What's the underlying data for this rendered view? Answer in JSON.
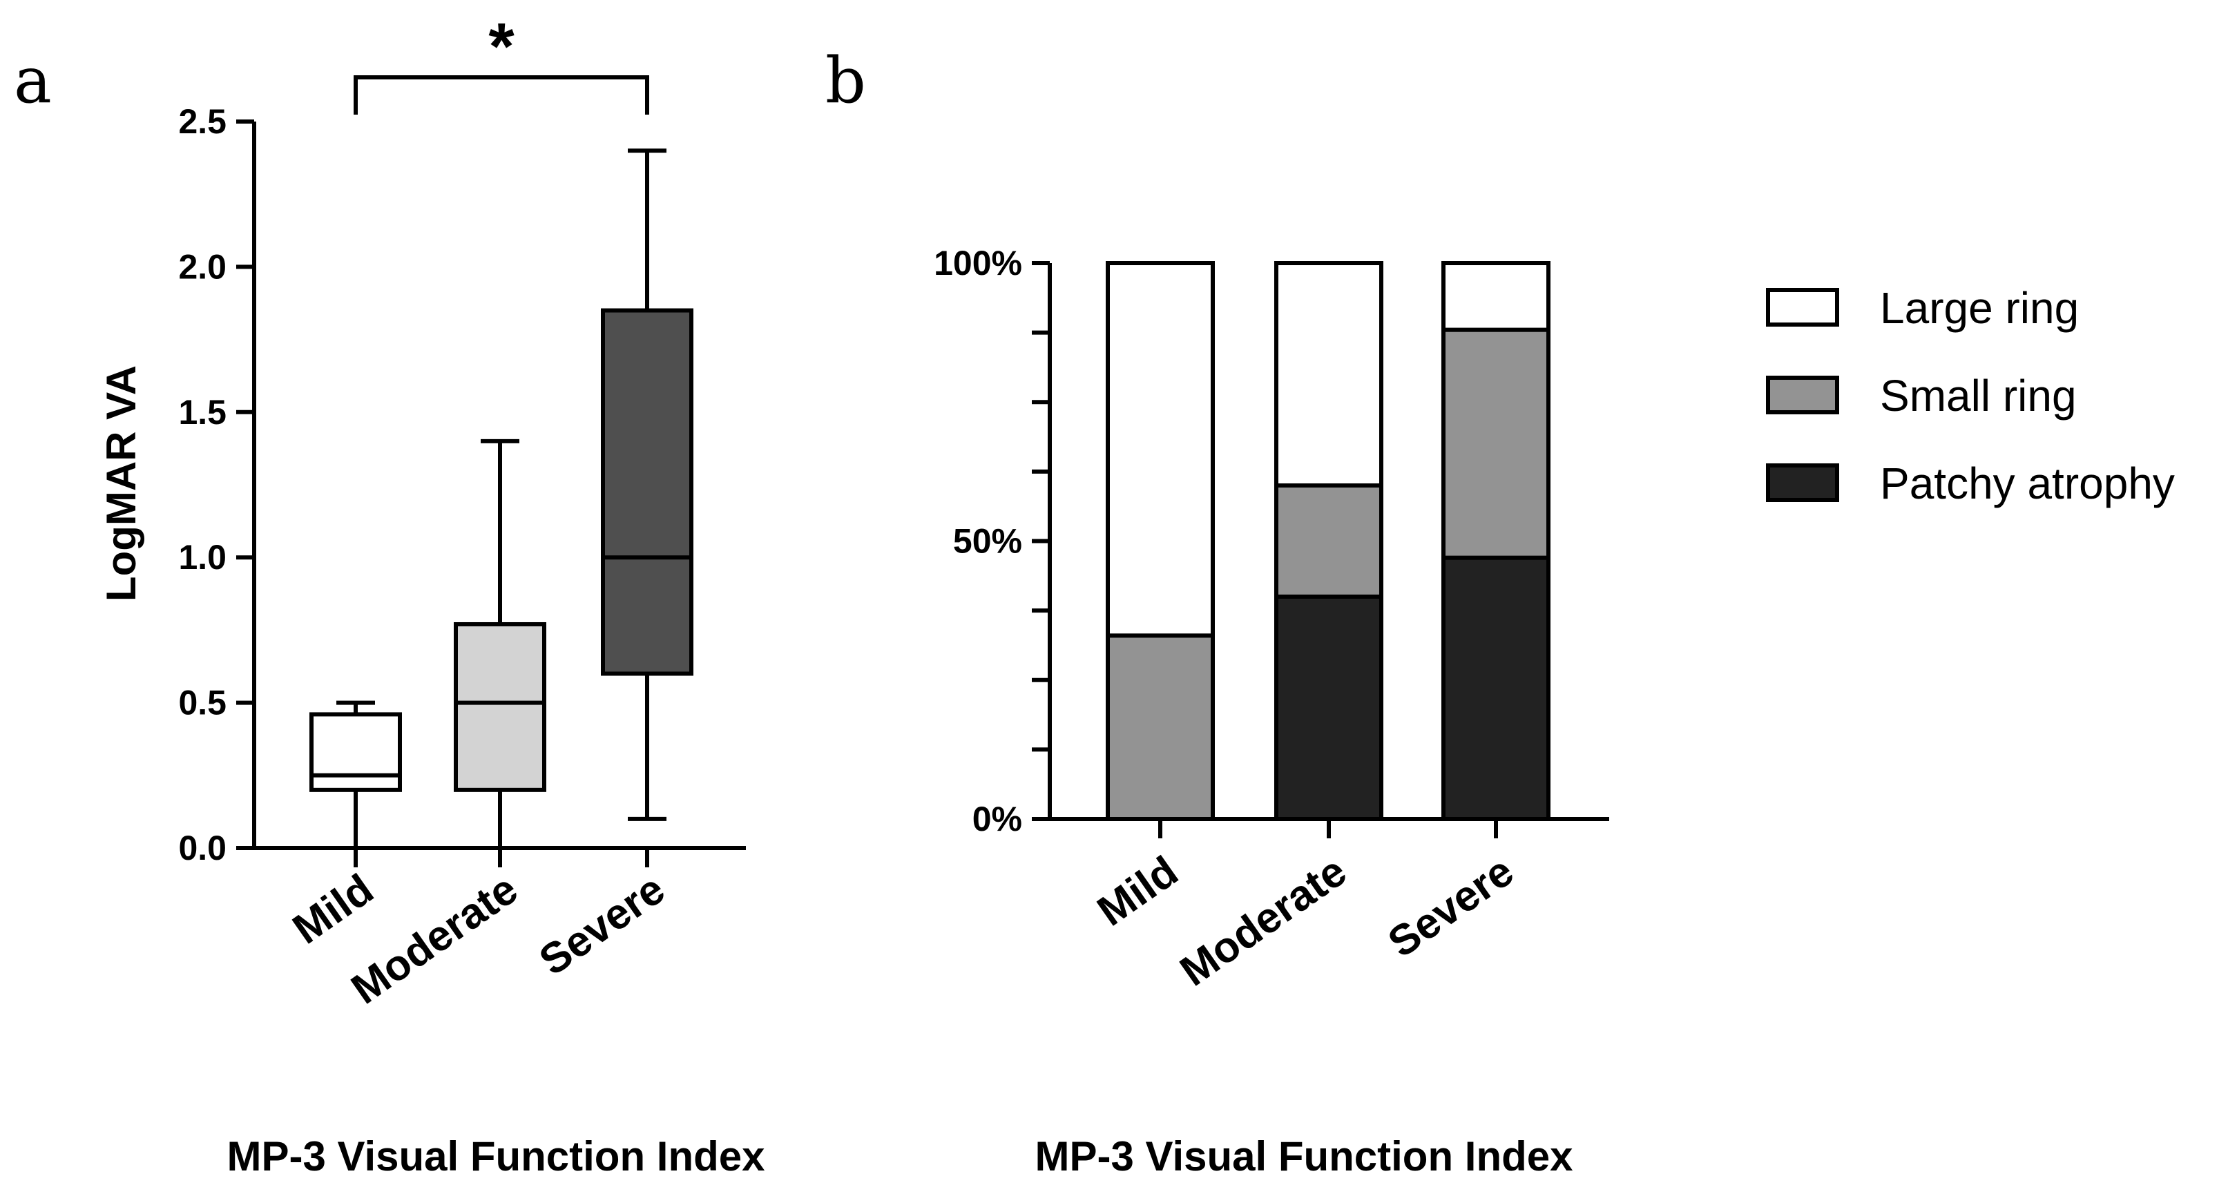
{
  "chart_data": [
    {
      "panel": "a",
      "type": "box",
      "ylabel": "LogMAR VA",
      "xlabel": "MP-3 Visual Function Index",
      "ylim": [
        0,
        2.5
      ],
      "yticks": [
        0.0,
        0.5,
        1.0,
        1.5,
        2.0,
        2.5
      ],
      "ytick_labels": [
        "0.0",
        "0.5",
        "1.0",
        "1.5",
        "2.0",
        "2.5"
      ],
      "categories": [
        "Mild",
        "Moderate",
        "Severe"
      ],
      "boxes": [
        {
          "name": "Mild",
          "min": 0.0,
          "q1": 0.2,
          "median": 0.25,
          "q3": 0.46,
          "max": 0.5,
          "color": "#ffffff"
        },
        {
          "name": "Moderate",
          "min": 0.0,
          "q1": 0.2,
          "median": 0.5,
          "q3": 0.77,
          "max": 1.4,
          "color": "#d3d3d3"
        },
        {
          "name": "Severe",
          "min": 0.1,
          "q1": 0.6,
          "median": 1.0,
          "q3": 1.85,
          "max": 2.4,
          "color": "#4f4f4f"
        }
      ],
      "significance": {
        "from": "Mild",
        "to": "Severe",
        "label": "*"
      }
    },
    {
      "panel": "b",
      "type": "stacked_bar",
      "xlabel": "MP-3 Visual Function Index",
      "ylim": [
        0,
        100
      ],
      "yticks": [
        0,
        12.5,
        25,
        37.5,
        50,
        62.5,
        75,
        87.5,
        100
      ],
      "ytick_labels": {
        "0": "0%",
        "50": "50%",
        "100": "100%"
      },
      "categories": [
        "Mild",
        "Moderate",
        "Severe"
      ],
      "series": [
        {
          "name": "Patchy atrophy",
          "color": "#222222",
          "values": [
            0,
            40,
            47
          ]
        },
        {
          "name": "Small ring",
          "color": "#939393",
          "values": [
            33,
            20,
            41
          ]
        },
        {
          "name": "Large ring",
          "color": "#ffffff",
          "values": [
            67,
            40,
            12
          ]
        }
      ],
      "legend_order": [
        "Large ring",
        "Small ring",
        "Patchy atrophy"
      ],
      "legend_position": "right"
    }
  ]
}
